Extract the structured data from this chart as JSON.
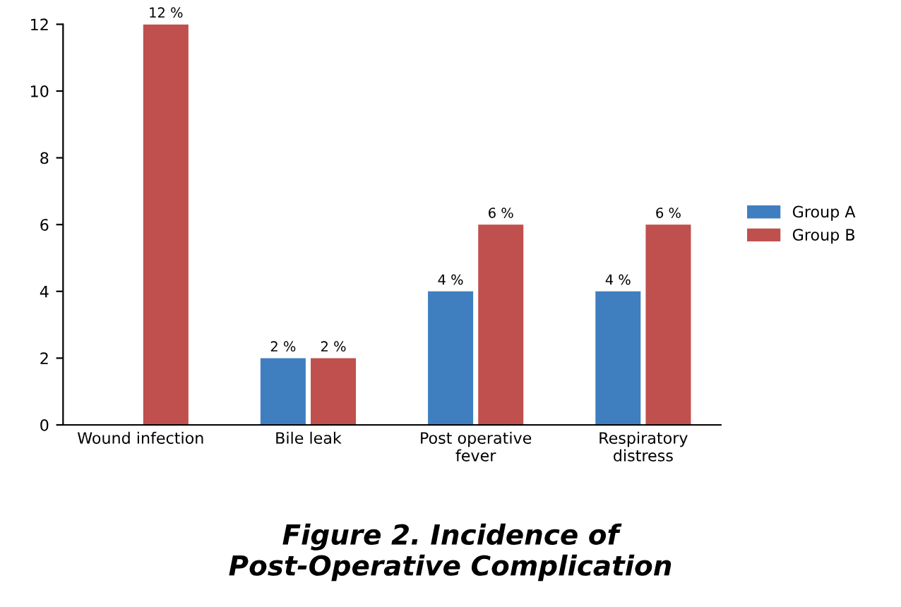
{
  "chart_data": {
    "type": "bar",
    "title": "Figure 2. Incidence of\nPost-Operative Complication",
    "categories": [
      "Wound infection",
      "Bile leak",
      "Post operative\nfever",
      "Respiratory\ndistress"
    ],
    "series": [
      {
        "name": "Group A",
        "color": "#3f7fc0",
        "values": [
          null,
          2,
          4,
          4
        ],
        "value_labels": [
          null,
          "2 %",
          "4 %",
          "4 %"
        ]
      },
      {
        "name": "Group B",
        "color": "#c0504d",
        "values": [
          12,
          2,
          6,
          6
        ],
        "value_labels": [
          "12 %",
          "2 %",
          "6 %",
          "6 %"
        ]
      }
    ],
    "ylim": [
      0,
      12
    ],
    "yticks": [
      0,
      2,
      4,
      6,
      8,
      10,
      12
    ],
    "grid": false,
    "legend": "right"
  }
}
